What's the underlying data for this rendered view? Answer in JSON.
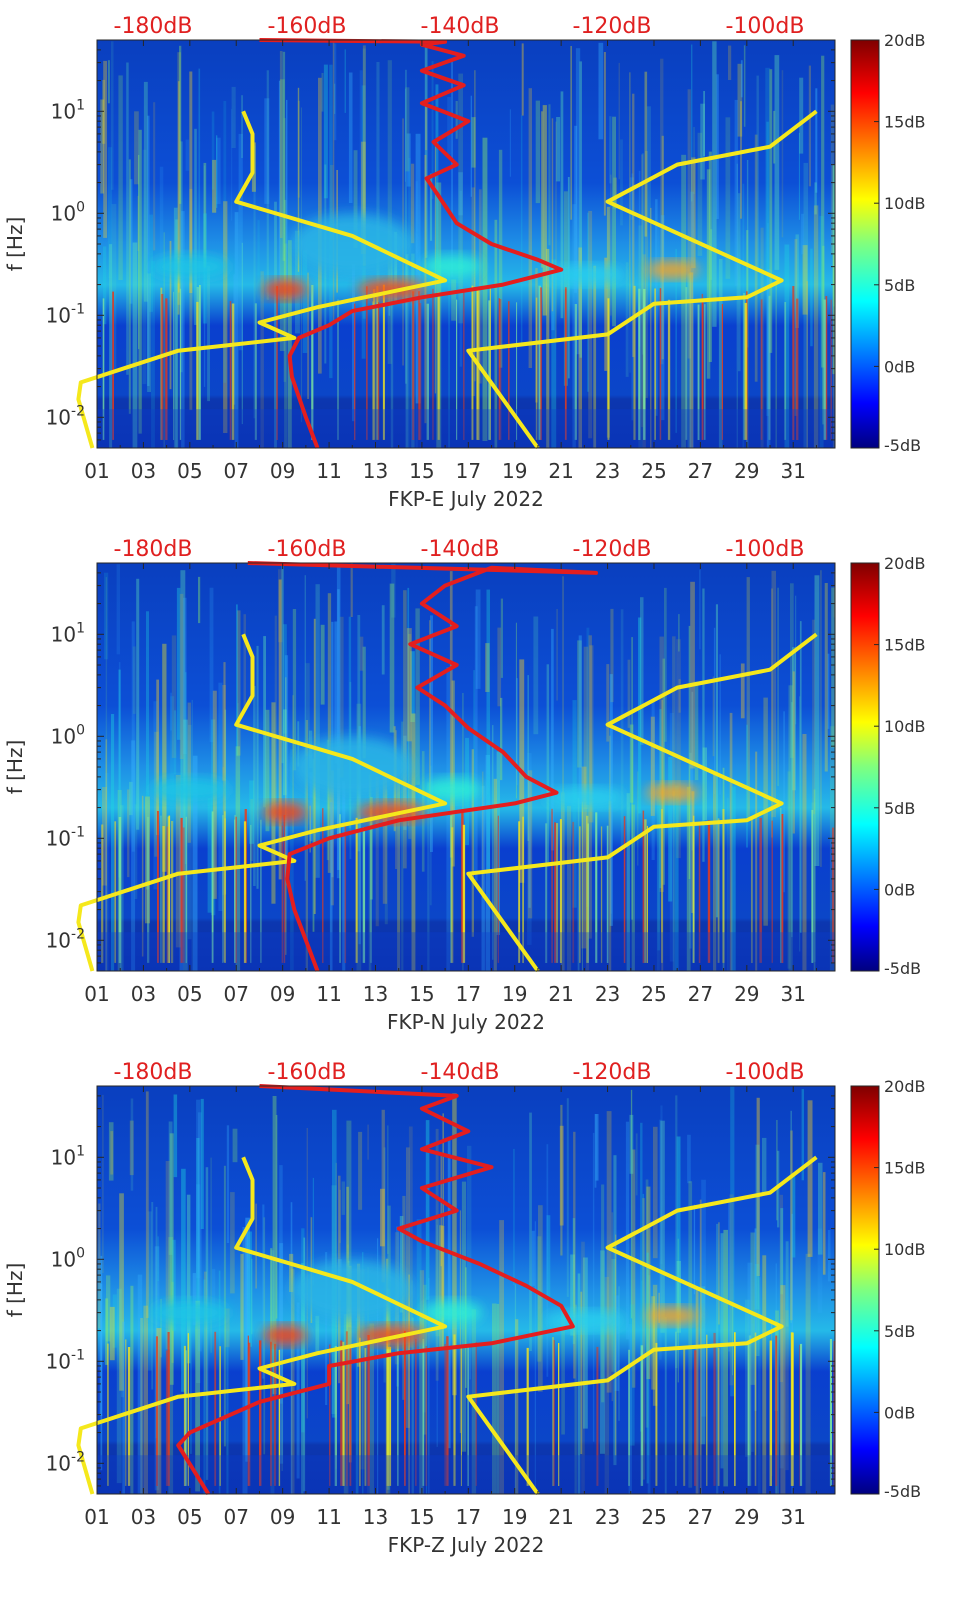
{
  "chart_data": [
    {
      "type": "heatmap",
      "xlabel": "FKP-E July 2022",
      "ylabel": "f [Hz]",
      "x_ticks": [
        "01",
        "03",
        "05",
        "07",
        "09",
        "11",
        "13",
        "15",
        "17",
        "19",
        "21",
        "23",
        "25",
        "27",
        "29",
        "31"
      ],
      "y_ticks": [
        "10-2",
        "10-1",
        "100",
        "101"
      ],
      "top_ticks": [
        "-180dB",
        "-160dB",
        "-140dB",
        "-120dB",
        "-100dB"
      ],
      "colorbar_ticks": [
        "20dB",
        "15dB",
        "10dB",
        "5dB",
        "0dB",
        "-5dB"
      ],
      "colormap": "jet",
      "line_colors": {
        "noise_model": "#f5e81c",
        "psd": "#e41e1e"
      },
      "model_low_top": [
        [
          7.3,
          10
        ],
        [
          7.7,
          6
        ],
        [
          7.7,
          2.5
        ],
        [
          7,
          1.3
        ],
        [
          12,
          0.6
        ],
        [
          16,
          0.22
        ],
        [
          10.5,
          0.12
        ],
        [
          8,
          0.085
        ],
        [
          9.5,
          0.06
        ],
        [
          4.5,
          0.045
        ],
        [
          0.3,
          0.022
        ],
        [
          0.2,
          0.015
        ],
        [
          0.8,
          0.005
        ]
      ],
      "model_high": [
        [
          32,
          10
        ],
        [
          30,
          4.5
        ],
        [
          26,
          3
        ],
        [
          23,
          1.3
        ],
        [
          30.5,
          0.22
        ],
        [
          29,
          0.15
        ],
        [
          25,
          0.13
        ],
        [
          23,
          0.065
        ],
        [
          17,
          0.045
        ],
        [
          20,
          0.005
        ]
      ],
      "psd_line": [
        [
          8,
          50
        ],
        [
          16,
          48
        ],
        [
          15,
          45
        ],
        [
          16.8,
          35
        ],
        [
          15,
          25
        ],
        [
          16.8,
          18
        ],
        [
          15,
          12
        ],
        [
          17,
          8
        ],
        [
          15.5,
          5
        ],
        [
          16.5,
          3
        ],
        [
          15.2,
          2.2
        ],
        [
          15.7,
          1.5
        ],
        [
          16.5,
          0.8
        ],
        [
          18,
          0.5
        ],
        [
          20,
          0.35
        ],
        [
          21,
          0.28
        ],
        [
          18.5,
          0.2
        ],
        [
          15,
          0.15
        ],
        [
          12,
          0.11
        ],
        [
          11,
          0.08
        ],
        [
          9.7,
          0.06
        ],
        [
          9.3,
          0.04
        ],
        [
          9.4,
          0.025
        ],
        [
          10,
          0.01
        ],
        [
          10.5,
          0.005
        ]
      ]
    },
    {
      "type": "heatmap",
      "xlabel": "FKP-N July 2022",
      "ylabel": "f [Hz]",
      "x_ticks": [
        "01",
        "03",
        "05",
        "07",
        "09",
        "11",
        "13",
        "15",
        "17",
        "19",
        "21",
        "23",
        "25",
        "27",
        "29",
        "31"
      ],
      "y_ticks": [
        "10-2",
        "10-1",
        "100",
        "101"
      ],
      "top_ticks": [
        "-180dB",
        "-160dB",
        "-140dB",
        "-120dB",
        "-100dB"
      ],
      "colorbar_ticks": [
        "20dB",
        "15dB",
        "10dB",
        "5dB",
        "0dB",
        "-5dB"
      ],
      "colormap": "jet",
      "line_colors": {
        "noise_model": "#f5e81c",
        "psd": "#e41e1e"
      },
      "model_low_top": [
        [
          7.3,
          10
        ],
        [
          7.7,
          6
        ],
        [
          7.7,
          2.5
        ],
        [
          7,
          1.3
        ],
        [
          12,
          0.6
        ],
        [
          16,
          0.22
        ],
        [
          10.5,
          0.12
        ],
        [
          8,
          0.085
        ],
        [
          9.5,
          0.06
        ],
        [
          4.5,
          0.045
        ],
        [
          0.3,
          0.022
        ],
        [
          0.2,
          0.015
        ],
        [
          0.8,
          0.005
        ]
      ],
      "model_high": [
        [
          32,
          10
        ],
        [
          30,
          4.5
        ],
        [
          26,
          3
        ],
        [
          23,
          1.3
        ],
        [
          30.5,
          0.22
        ],
        [
          29,
          0.15
        ],
        [
          25,
          0.13
        ],
        [
          23,
          0.065
        ],
        [
          17,
          0.045
        ],
        [
          20,
          0.005
        ]
      ],
      "psd_line": [
        [
          7.5,
          50
        ],
        [
          22.5,
          40
        ],
        [
          18,
          45
        ],
        [
          16,
          30
        ],
        [
          15,
          20
        ],
        [
          16.5,
          12
        ],
        [
          14.5,
          8
        ],
        [
          16.5,
          5
        ],
        [
          14.8,
          3
        ],
        [
          16,
          2
        ],
        [
          17,
          1.2
        ],
        [
          18.5,
          0.7
        ],
        [
          19.5,
          0.4
        ],
        [
          20.8,
          0.28
        ],
        [
          19,
          0.22
        ],
        [
          14,
          0.15
        ],
        [
          11,
          0.1
        ],
        [
          9.3,
          0.07
        ],
        [
          9.2,
          0.04
        ],
        [
          9.5,
          0.02
        ],
        [
          10.5,
          0.005
        ]
      ]
    },
    {
      "type": "heatmap",
      "xlabel": "FKP-Z July 2022",
      "ylabel": "f [Hz]",
      "x_ticks": [
        "01",
        "03",
        "05",
        "07",
        "09",
        "11",
        "13",
        "15",
        "17",
        "19",
        "21",
        "23",
        "25",
        "27",
        "29",
        "31"
      ],
      "y_ticks": [
        "10-2",
        "10-1",
        "100",
        "101"
      ],
      "top_ticks": [
        "-180dB",
        "-160dB",
        "-140dB",
        "-120dB",
        "-100dB"
      ],
      "colorbar_ticks": [
        "20dB",
        "15dB",
        "10dB",
        "5dB",
        "0dB",
        "-5dB"
      ],
      "colormap": "jet",
      "line_colors": {
        "noise_model": "#f5e81c",
        "psd": "#e41e1e"
      },
      "model_low_top": [
        [
          7.3,
          10
        ],
        [
          7.7,
          6
        ],
        [
          7.7,
          2.5
        ],
        [
          7,
          1.3
        ],
        [
          12,
          0.6
        ],
        [
          16,
          0.22
        ],
        [
          10.5,
          0.12
        ],
        [
          8,
          0.085
        ],
        [
          9.5,
          0.06
        ],
        [
          4.5,
          0.045
        ],
        [
          0.3,
          0.022
        ],
        [
          0.2,
          0.015
        ],
        [
          0.8,
          0.005
        ]
      ],
      "model_high": [
        [
          32,
          10
        ],
        [
          30,
          4.5
        ],
        [
          26,
          3
        ],
        [
          23,
          1.3
        ],
        [
          30.5,
          0.22
        ],
        [
          29,
          0.15
        ],
        [
          25,
          0.13
        ],
        [
          23,
          0.065
        ],
        [
          17,
          0.045
        ],
        [
          20,
          0.005
        ]
      ],
      "psd_line": [
        [
          8,
          50
        ],
        [
          16.5,
          40
        ],
        [
          15,
          30
        ],
        [
          17,
          18
        ],
        [
          15,
          12
        ],
        [
          18,
          8
        ],
        [
          15,
          5
        ],
        [
          16.5,
          3
        ],
        [
          14,
          2
        ],
        [
          15,
          1.5
        ],
        [
          17.5,
          0.9
        ],
        [
          19.5,
          0.55
        ],
        [
          21,
          0.35
        ],
        [
          21.5,
          0.22
        ],
        [
          18,
          0.15
        ],
        [
          14,
          0.12
        ],
        [
          11,
          0.09
        ],
        [
          11,
          0.06
        ],
        [
          8,
          0.04
        ],
        [
          5,
          0.02
        ],
        [
          4.5,
          0.015
        ],
        [
          5.8,
          0.005
        ]
      ]
    }
  ]
}
